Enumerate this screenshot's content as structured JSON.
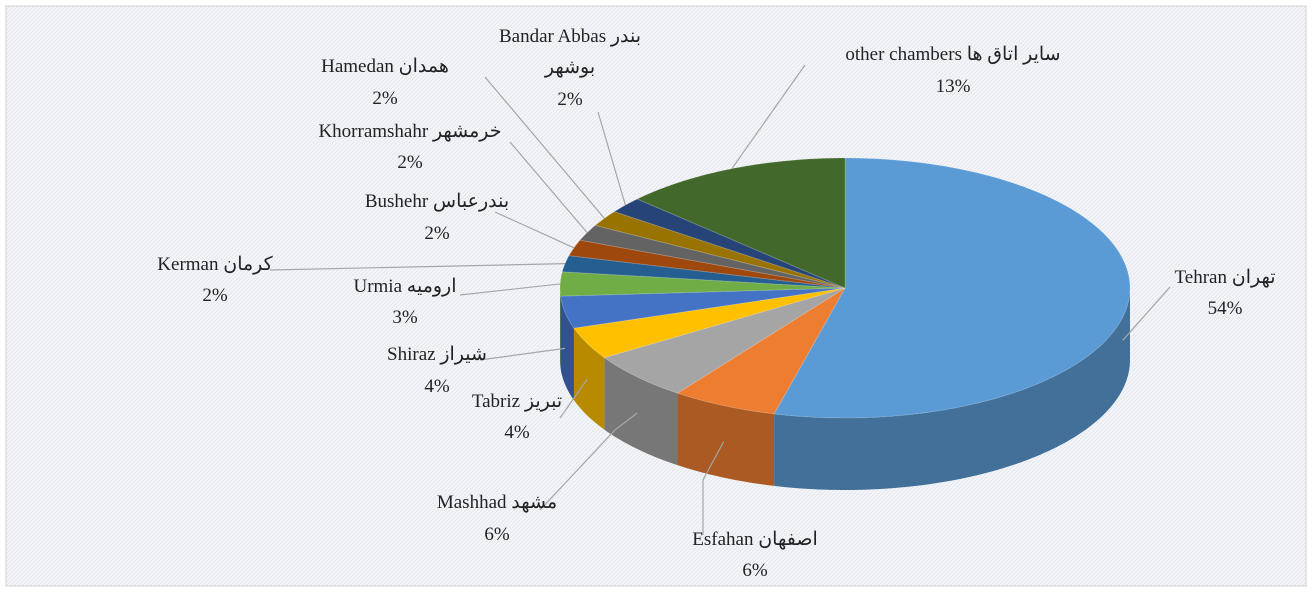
{
  "chart_data": {
    "type": "pie3d",
    "categories": [
      "Tehran تهران",
      "Esfahan اصفهان",
      "Mashhad مشهد",
      "Tabriz تبریز",
      "Shiraz شیراز",
      "Urmia ارومیه",
      "Kerman کرمان",
      "Bushehr بندرعباس",
      "Khorramshahr خرمشهر",
      "Hamedan همدان",
      "Bandar Abbas بندر\nبوشهر",
      "other chambers سایر اتاق ها"
    ],
    "values": [
      54,
      6,
      6,
      4,
      4,
      3,
      2,
      2,
      2,
      2,
      2,
      13
    ],
    "value_labels": [
      "54%",
      "6%",
      "6%",
      "4%",
      "4%",
      "3%",
      "2%",
      "2%",
      "2%",
      "2%",
      "2%",
      "13%"
    ],
    "colors": [
      "#5b9bd5",
      "#ed7d31",
      "#a5a5a5",
      "#ffc000",
      "#4472c4",
      "#70ad47",
      "#255e91",
      "#9e480e",
      "#636363",
      "#997300",
      "#264478",
      "#43682b"
    ]
  }
}
